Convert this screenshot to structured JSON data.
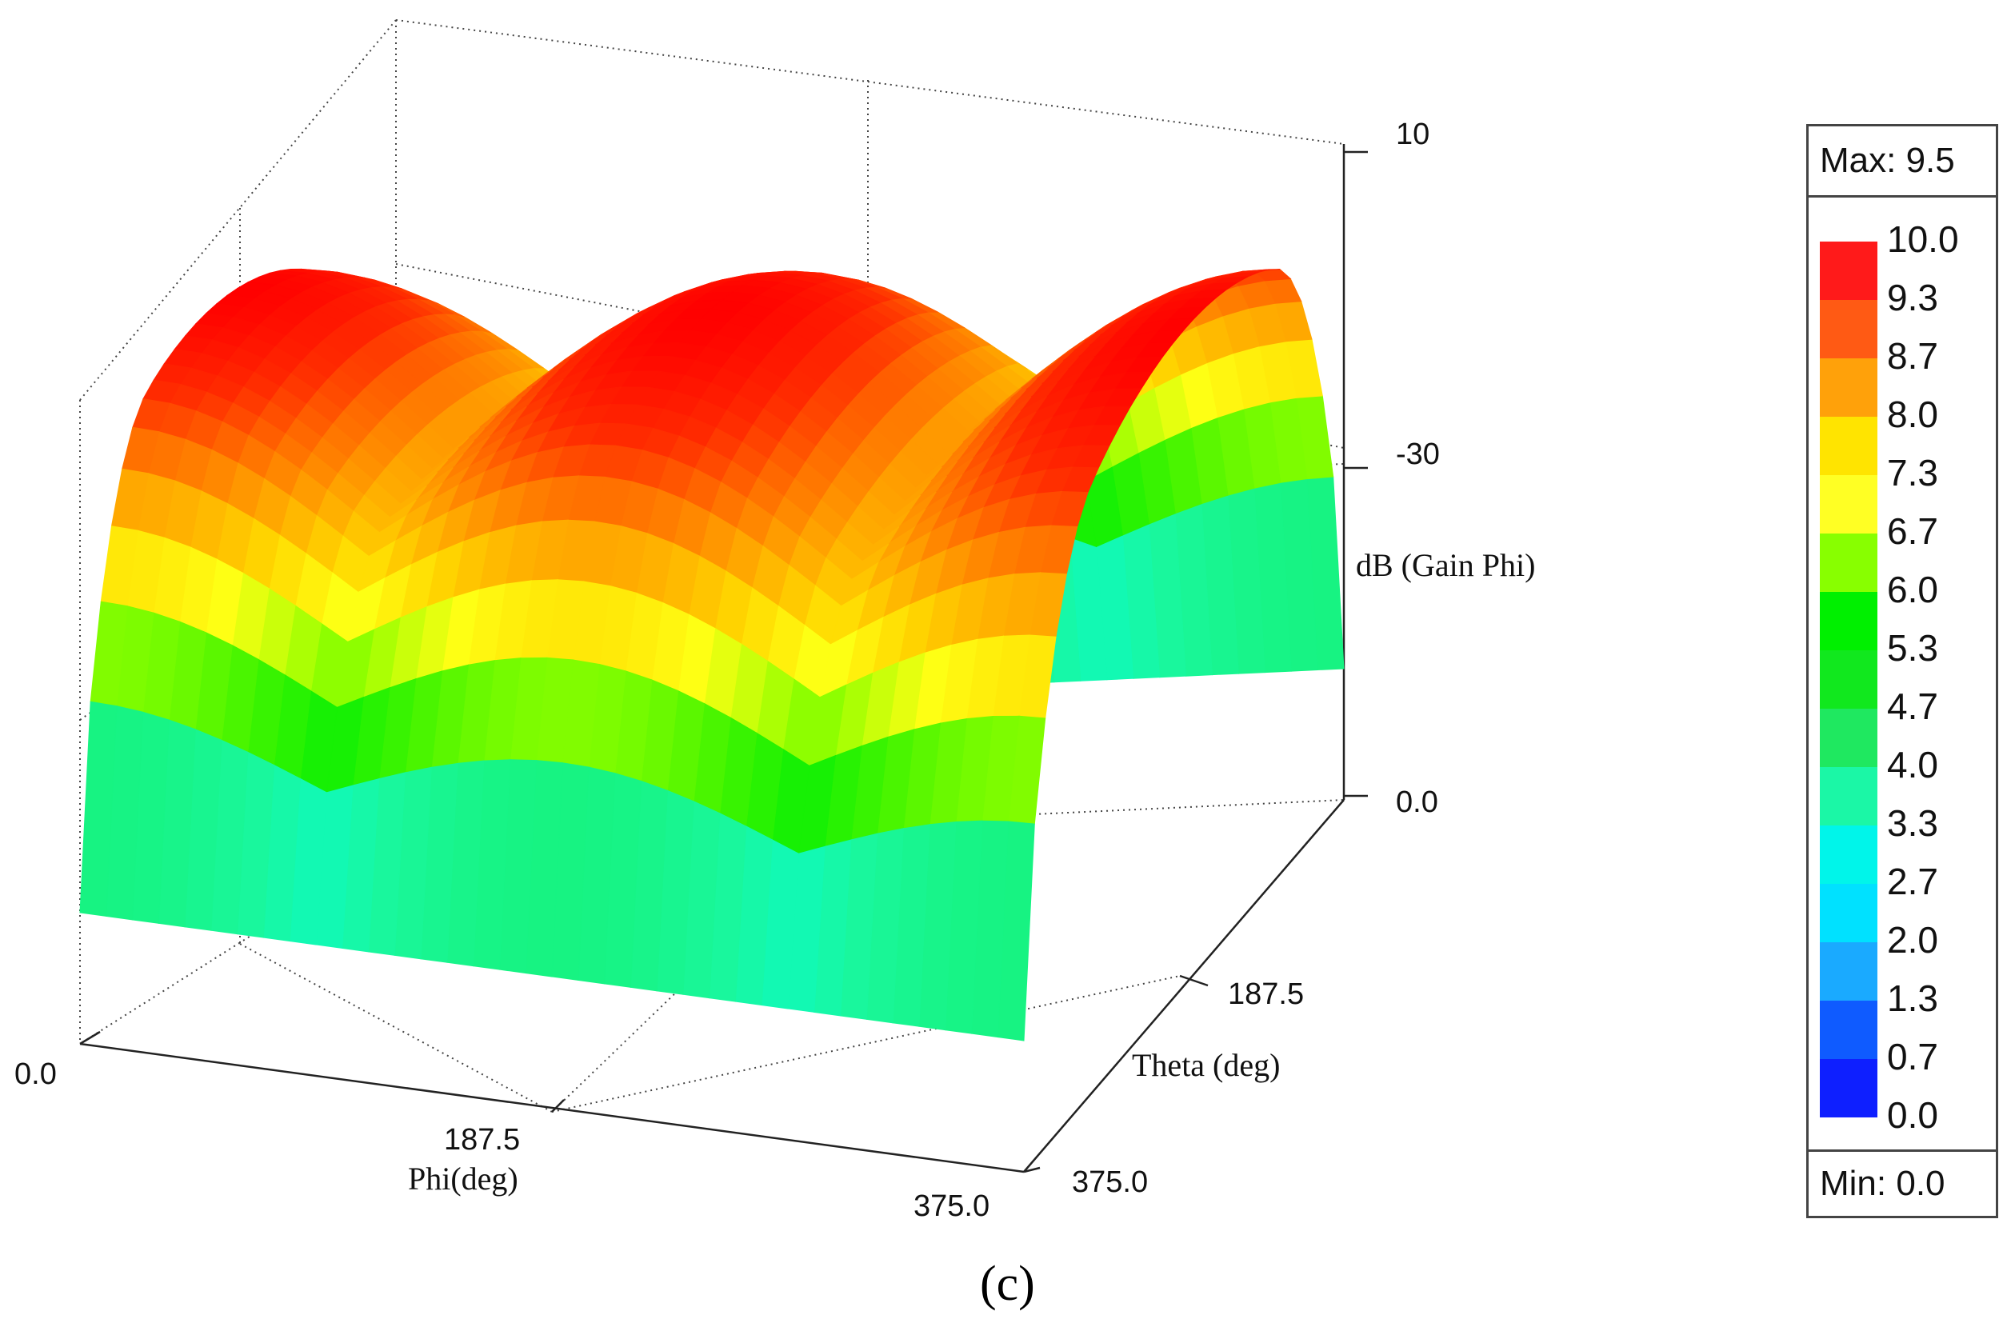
{
  "chart_data": {
    "type": "surface3d",
    "z_label": "dB (Gain Phi)",
    "x_label": "Phi(deg)",
    "y_label": "Theta (deg)",
    "x_ticks": [
      "0.0",
      "187.5",
      "375.0"
    ],
    "y_ticks": [
      "187.5",
      "375.0"
    ],
    "z_ticks": [
      "10",
      "-30",
      "0.0"
    ],
    "x_range": [
      0,
      375
    ],
    "y_range": [
      0,
      375
    ],
    "caption": "(c)",
    "legend": {
      "max_label": "Max: 9.5",
      "min_label": "Min: 0.0",
      "levels": [
        "10.0",
        "9.3",
        "8.7",
        "8.0",
        "7.3",
        "6.7",
        "6.0",
        "5.3",
        "4.7",
        "4.0",
        "3.3",
        "2.7",
        "2.0",
        "1.3",
        "0.7",
        "0.0"
      ],
      "colors": [
        "#ff1a1a",
        "#ff5a14",
        "#ffa10a",
        "#ffe400",
        "#ffff24",
        "#88ff00",
        "#00f000",
        "#11e81e",
        "#1fe860",
        "#1bf7a6",
        "#00f5ea",
        "#00e1ff",
        "#1aaaff",
        "#0f5bff",
        "#0e1fff"
      ]
    },
    "colormap": {
      "stops": [
        0,
        0.07,
        0.13,
        0.2,
        0.27,
        0.33,
        0.4,
        0.47,
        0.53,
        0.6,
        0.67,
        0.73,
        0.8,
        0.87,
        0.93,
        1.0
      ],
      "colors": [
        "#0000ff",
        "#0a46ff",
        "#1a9cff",
        "#00e2ff",
        "#00fff0",
        "#19f79c",
        "#14ec55",
        "#06ef06",
        "#40f400",
        "#98ff00",
        "#ffff14",
        "#ffd800",
        "#ffa500",
        "#ff6a00",
        "#ff2a00",
        "#ff0000"
      ]
    }
  }
}
